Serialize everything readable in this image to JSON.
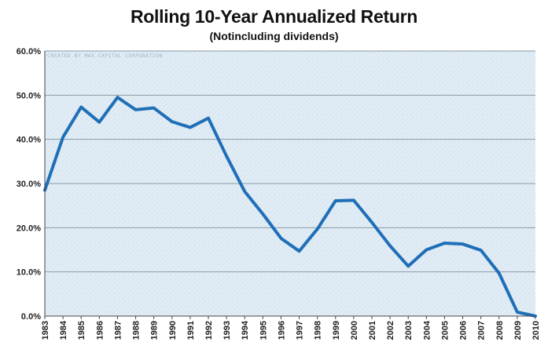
{
  "chart_data": {
    "type": "line",
    "title": "Rolling 10-Year Annualized Return",
    "subtitle": "(Notincluding dividends)",
    "credit": "CREATED BY MAX CAPITAL CORPORATION",
    "xlabel": "",
    "ylabel": "",
    "x": [
      "1983",
      "1984",
      "1985",
      "1986",
      "1987",
      "1988",
      "1989",
      "1990",
      "1991",
      "1992",
      "1993",
      "1994",
      "1995",
      "1996",
      "1997",
      "1998",
      "1999",
      "2000",
      "2001",
      "2002",
      "2003",
      "2004",
      "2005",
      "2006",
      "2007",
      "2008",
      "2009",
      "2010"
    ],
    "series": [
      {
        "values": [
          28.5,
          40.5,
          47.3,
          43.9,
          49.5,
          46.7,
          47.1,
          44.0,
          42.7,
          44.8,
          36.2,
          28.2,
          23.1,
          17.6,
          14.7,
          19.7,
          26.1,
          26.2,
          21.2,
          15.9,
          11.3,
          15.0,
          16.5,
          16.3,
          14.9,
          9.7,
          0.9,
          0.0
        ],
        "color": "#1f6fb8"
      }
    ],
    "yticks": [
      0,
      10,
      20,
      30,
      40,
      50,
      60
    ],
    "ytick_labels": [
      "0.0%",
      "10.0%",
      "20.0%",
      "30.0%",
      "40.0%",
      "50.0%",
      "60.0%"
    ],
    "ylim": [
      0,
      60
    ],
    "grid": true,
    "legend": "none",
    "plot_background": "#dce9f3",
    "gridline_color": "#8a9aa6"
  }
}
